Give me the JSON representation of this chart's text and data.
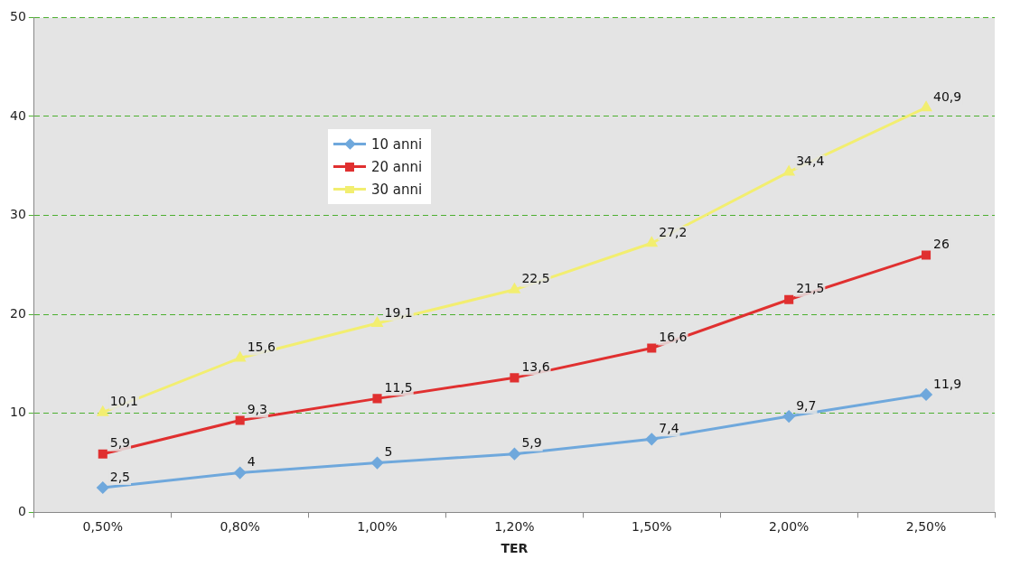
{
  "chart_data": {
    "type": "line",
    "xlabel": "TER",
    "categories": [
      "0,50%",
      "0,80%",
      "1,00%",
      "1,20%",
      "1,50%",
      "2,00%",
      "2,50%"
    ],
    "ylim": [
      0,
      50
    ],
    "yticks": [
      0,
      10,
      20,
      30,
      40,
      50
    ],
    "grid": "y",
    "legend": "top left",
    "series": [
      {
        "name": "10 anni",
        "color": "#6fa8dc",
        "marker": "diamond",
        "values": [
          2.5,
          4,
          5,
          5.9,
          7.4,
          9.7,
          11.9
        ],
        "value_labels": [
          "2,5",
          "4",
          "5",
          "5,9",
          "7,4",
          "9,7",
          "11,9"
        ]
      },
      {
        "name": "20 anni",
        "color": "#e03030",
        "marker": "square",
        "values": [
          5.9,
          9.3,
          11.5,
          13.6,
          16.6,
          21.5,
          26
        ],
        "value_labels": [
          "5,9",
          "9,3",
          "11,5",
          "13,6",
          "16,6",
          "21,5",
          "26"
        ]
      },
      {
        "name": "30 anni",
        "color": "#f2ee70",
        "marker": "triangle",
        "values": [
          10.1,
          15.6,
          19.1,
          22.5,
          27.2,
          34.4,
          40.9
        ],
        "value_labels": [
          "10,1",
          "15,6",
          "19,1",
          "22,5",
          "27,2",
          "34,4",
          "40,9"
        ]
      }
    ]
  }
}
